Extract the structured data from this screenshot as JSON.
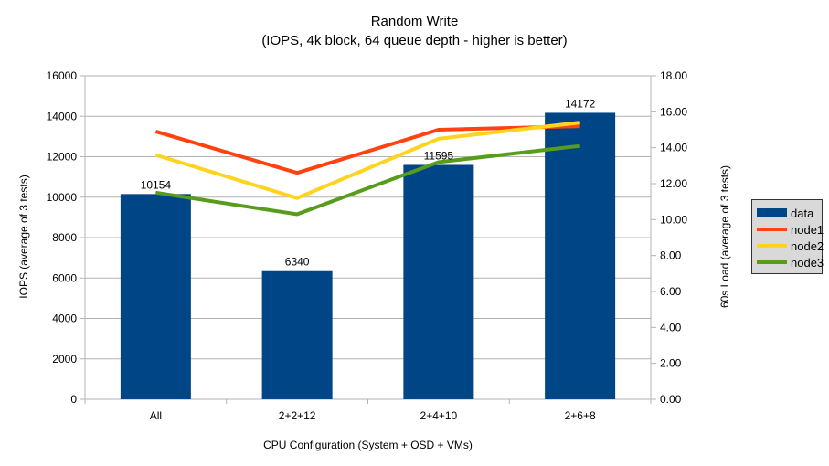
{
  "title": "Random Write",
  "subtitle": "(IOPS, 4k block, 64 queue depth - higher is better)",
  "colors": {
    "bar": "#004586",
    "node1": "#FF420E",
    "node2": "#FFD320",
    "node3": "#579D1B",
    "grid": "#B3B3B3",
    "axis": "#B3B3B3",
    "text": "#000000",
    "legend_bg": "#D9D9D9",
    "legend_border": "#333333"
  },
  "chart_data": {
    "type": "combo-bar-line",
    "title": "Random Write",
    "subtitle": "(IOPS, 4k block, 64 queue depth - higher is better)",
    "xlabel": "CPU Configuration (System + OSD + VMs)",
    "ylabel_left": "IOPS (average of 3 tests)",
    "ylabel_right": "60s Load (average of 3 tests)",
    "categories": [
      "All",
      "2+2+12",
      "2+4+10",
      "2+6+8"
    ],
    "series": [
      {
        "name": "data",
        "type": "bar",
        "axis": "left",
        "color": "#004586",
        "values": [
          10154,
          6340,
          11595,
          14172
        ]
      },
      {
        "name": "node1",
        "type": "line",
        "axis": "right",
        "color": "#FF420E",
        "values": [
          14.9,
          12.6,
          15.0,
          15.2
        ]
      },
      {
        "name": "node2",
        "type": "line",
        "axis": "right",
        "color": "#FFD320",
        "values": [
          13.6,
          11.2,
          14.5,
          15.4
        ]
      },
      {
        "name": "node3",
        "type": "line",
        "axis": "right",
        "color": "#579D1B",
        "values": [
          11.5,
          10.3,
          13.2,
          14.1
        ]
      }
    ],
    "bar_labels": [
      "10154",
      "6340",
      "11595",
      "14172"
    ],
    "left_axis": {
      "min": 0,
      "max": 16000,
      "step": 2000,
      "tick_labels": [
        "0",
        "2000",
        "4000",
        "6000",
        "8000",
        "10000",
        "12000",
        "14000",
        "16000"
      ]
    },
    "right_axis": {
      "min": 0,
      "max": 18,
      "step": 2,
      "tick_labels": [
        "0.00",
        "2.00",
        "4.00",
        "6.00",
        "8.00",
        "10.00",
        "12.00",
        "14.00",
        "16.00",
        "18.00"
      ]
    },
    "grid": "horizontal",
    "legend": {
      "position": "right",
      "entries": [
        "data",
        "node1",
        "node2",
        "node3"
      ]
    }
  }
}
